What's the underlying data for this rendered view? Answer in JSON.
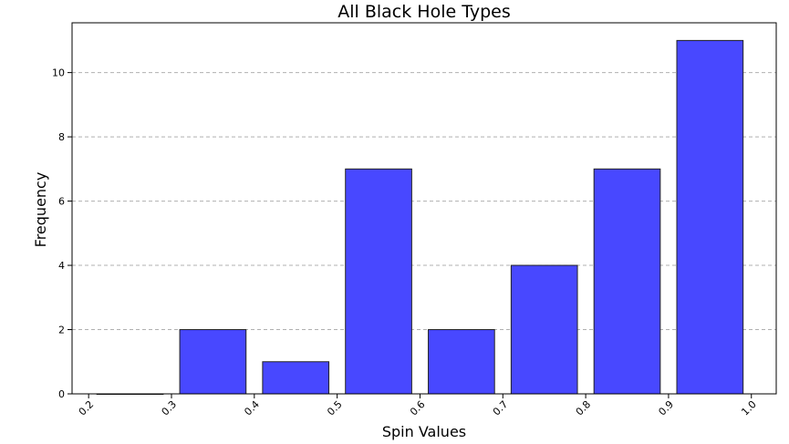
{
  "chart_data": {
    "type": "bar",
    "title": "All Black Hole Types",
    "xlabel": "Spin Values",
    "ylabel": "Frequency",
    "bin_edges": [
      0.2,
      0.3,
      0.4,
      0.5,
      0.6,
      0.7,
      0.8,
      0.9,
      1.0
    ],
    "values": [
      0,
      2,
      1,
      7,
      2,
      4,
      7,
      11
    ],
    "xlim": [
      0.18,
      1.03
    ],
    "ylim": [
      0,
      11.55
    ],
    "xticks": [
      "0.2",
      "0.3",
      "0.4",
      "0.5",
      "0.6",
      "0.7",
      "0.8",
      "0.9",
      "1.0"
    ],
    "yticks": [
      "0",
      "2",
      "4",
      "6",
      "8",
      "10"
    ],
    "bar_color": "#4848ff",
    "grid": "horizontal-dashed",
    "legend": "none"
  }
}
